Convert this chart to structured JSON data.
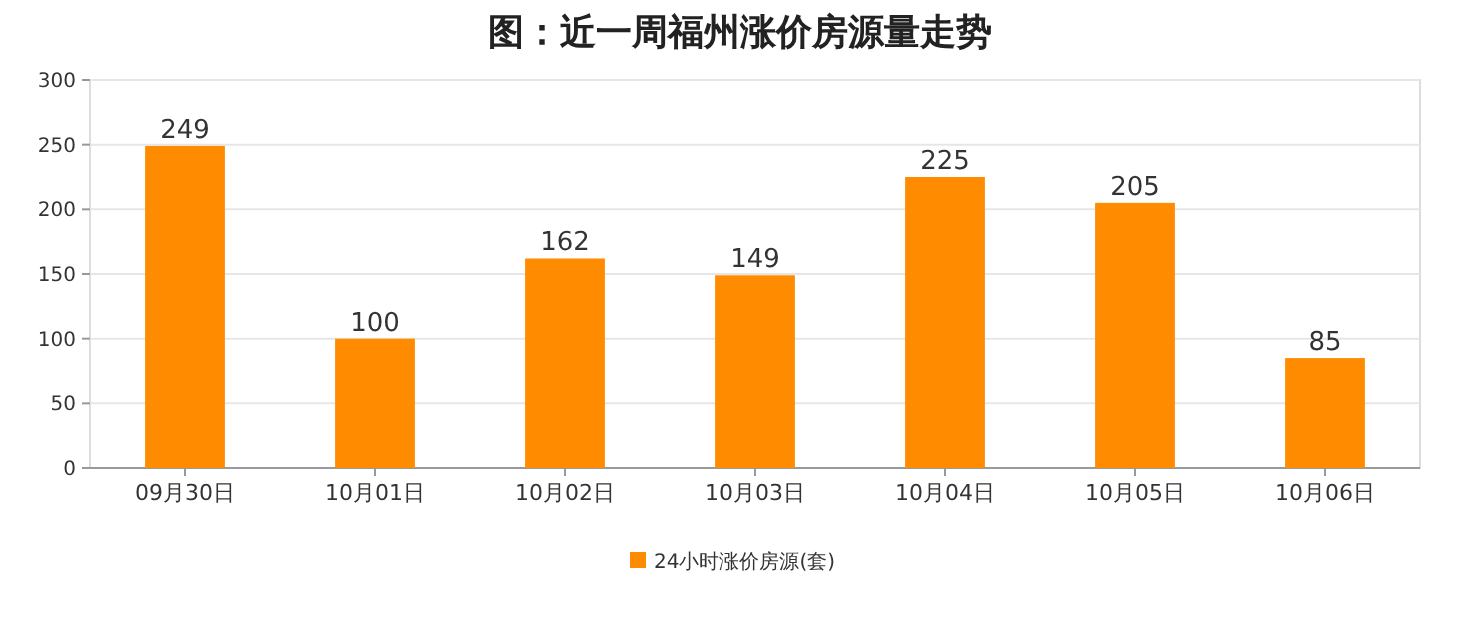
{
  "chart_data": {
    "type": "bar",
    "title": "图：近一周福州涨价房源量走势",
    "categories": [
      "09月30日",
      "10月01日",
      "10月02日",
      "10月03日",
      "10月04日",
      "10月05日",
      "10月06日"
    ],
    "series": [
      {
        "name": "24小时涨价房源(套)",
        "color": "#ff8c00",
        "values": [
          249,
          100,
          162,
          149,
          225,
          205,
          85
        ]
      }
    ],
    "ylim": [
      0,
      300
    ],
    "yticks": [
      0,
      50,
      100,
      150,
      200,
      250,
      300
    ],
    "grid": "y",
    "legend": "bottom",
    "data_labels": true
  }
}
